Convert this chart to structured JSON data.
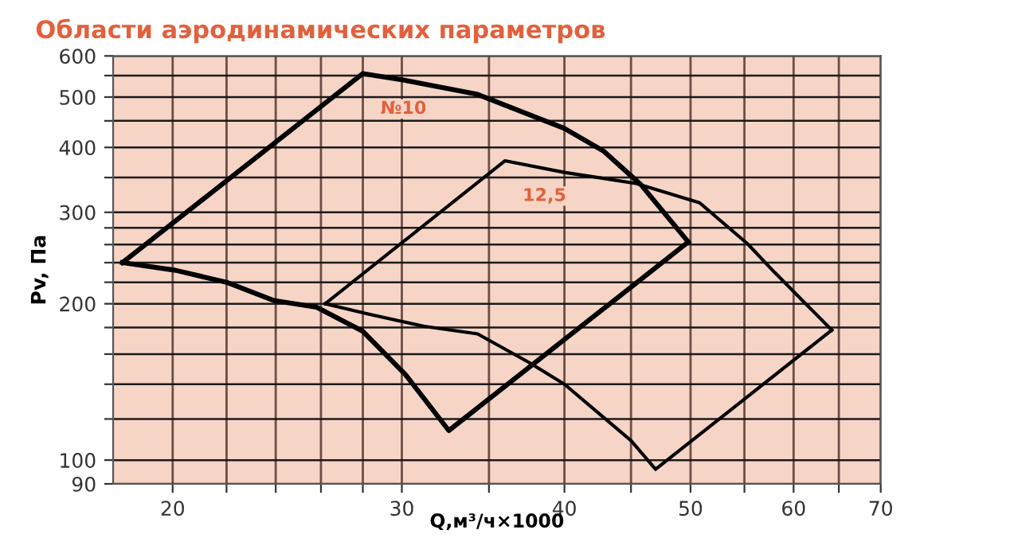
{
  "chart_data": {
    "type": "line",
    "title": "Области аэродинамических параметров",
    "xlabel": "Q,м³/ч×1000",
    "ylabel": "Pv, Па",
    "log": "xy",
    "grid": true,
    "xlim": [
      18,
      70
    ],
    "ylim": [
      90,
      600
    ],
    "xticks": [
      20,
      {
        "value": 22,
        "label": null
      },
      {
        "value": 24,
        "label": null
      },
      {
        "value": 26,
        "label": null
      },
      {
        "value": 28,
        "label": null
      },
      30,
      {
        "value": 35,
        "label": null
      },
      40,
      {
        "value": 45,
        "label": null
      },
      50,
      {
        "value": 55,
        "label": null
      },
      60,
      {
        "value": 65,
        "label": null
      },
      70
    ],
    "yticks": [
      90,
      100,
      {
        "value": 120,
        "label": null
      },
      {
        "value": 140,
        "label": null
      },
      {
        "value": 160,
        "label": null
      },
      {
        "value": 180,
        "label": null
      },
      200,
      {
        "value": 220,
        "label": null
      },
      {
        "value": 240,
        "label": null
      },
      {
        "value": 260,
        "label": null
      },
      {
        "value": 280,
        "label": null
      },
      300,
      {
        "value": 350,
        "label": null
      },
      400,
      {
        "value": 450,
        "label": null
      },
      500,
      {
        "value": 550,
        "label": null
      },
      600
    ],
    "series": [
      {
        "name": "№10",
        "color": "#000000",
        "x": [
          18.3,
          28.0,
          30.0,
          34.3,
          40.0,
          42.9,
          45.8,
          49.8
        ],
        "values": [
          240,
          555,
          540,
          506,
          435,
          393,
          339,
          263
        ]
      },
      {
        "color": "#000000",
        "x": [
          18.3,
          20.1,
          22.0,
          23.9,
          25.8,
          28.0,
          30.2,
          32.6,
          49.8
        ],
        "values": [
          240,
          232,
          220,
          203,
          197,
          177,
          146,
          114,
          263
        ]
      },
      {
        "name": "12,5",
        "color": "#000000",
        "x": [
          26.2,
          36.0,
          40.0,
          45.4,
          50.8,
          55.3,
          58.0,
          64.2
        ],
        "values": [
          200,
          377,
          358,
          341,
          313,
          261,
          230,
          178
        ]
      },
      {
        "color": "#000000",
        "x": [
          26.2,
          28.3,
          31.2,
          34.3,
          37.6,
          40.0,
          45.0,
          47.0,
          64.2
        ],
        "values": [
          200,
          191,
          181,
          175,
          154,
          140,
          109,
          96,
          178
        ]
      }
    ]
  }
}
